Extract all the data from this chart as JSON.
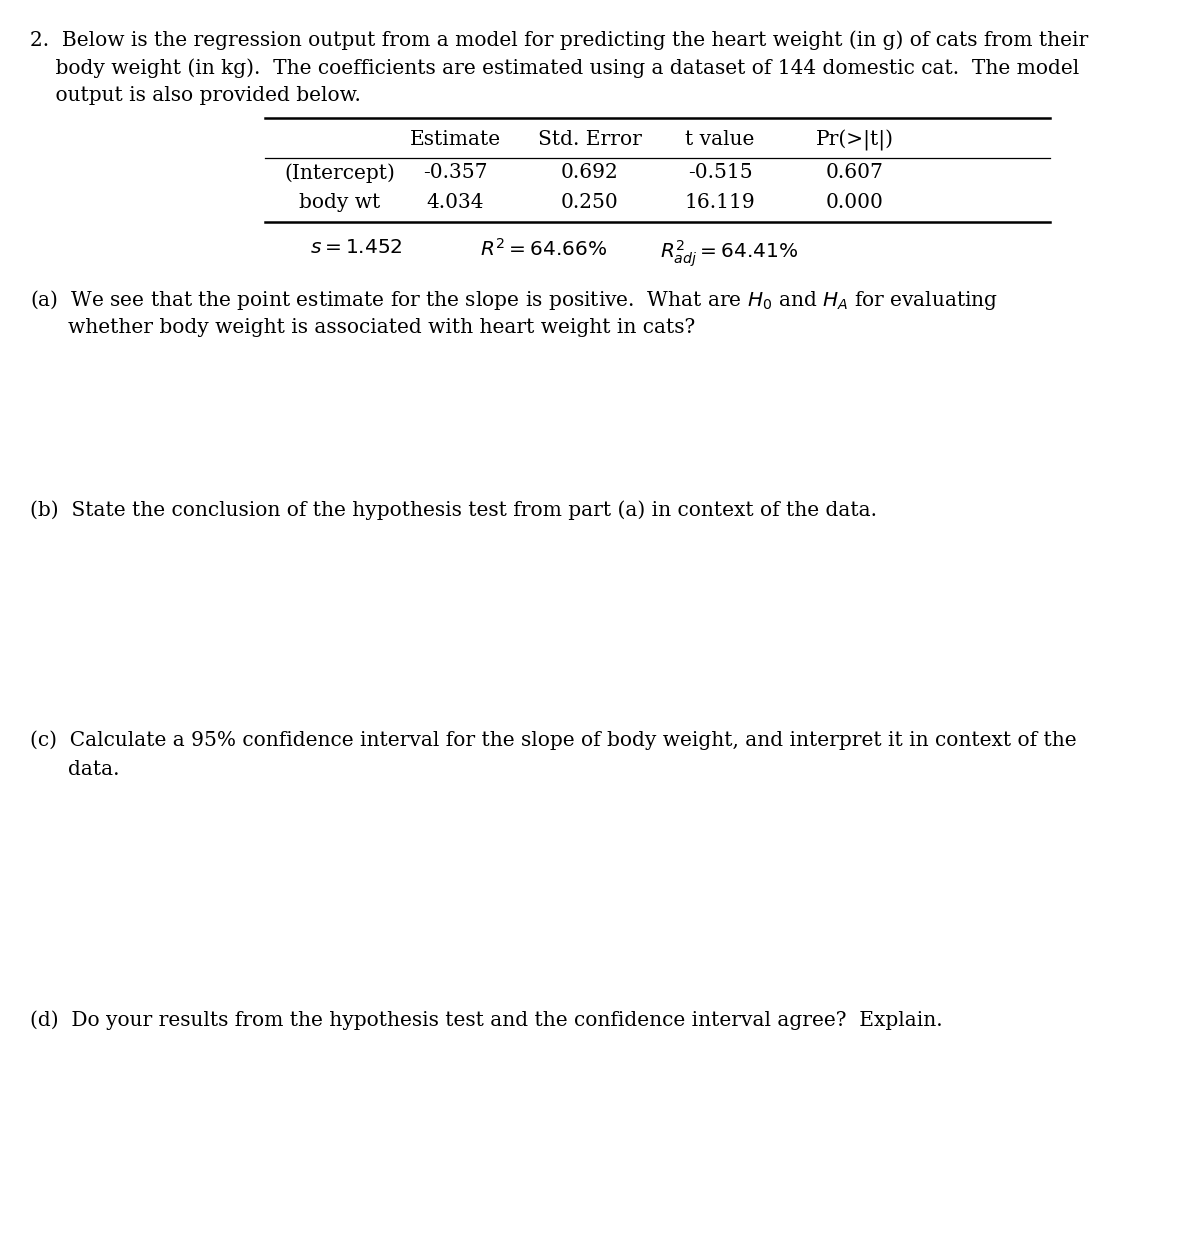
{
  "bg_color": "#ffffff",
  "text_color": "#000000",
  "font_family": "serif",
  "fig_width": 12.0,
  "fig_height": 12.4,
  "dpi": 100,
  "question_line1": "2.  Below is the regression output from a model for predicting the heart weight (in g) of cats from their",
  "question_line2": "    body weight (in kg).  The coefficients are estimated using a dataset of 144 domestic cat.  The model",
  "question_line3": "    output is also provided below.",
  "col_headers": [
    "",
    "Estimate",
    "Std. Error",
    "t value",
    "Pr(>|t|)"
  ],
  "row1": [
    "(Intercept)",
    "-0.357",
    "0.692",
    "-0.515",
    "0.607"
  ],
  "row2": [
    "body wt",
    "4.034",
    "0.250",
    "16.119",
    "0.000"
  ],
  "stats_s": "s = 1.452",
  "stats_r2": "R^2 = 64.66%",
  "stats_radj": "R^2_adj = 64.41%",
  "part_a_line1": "(a)  We see that the point estimate for the slope is positive.  What are $H_0$ and $H_A$ for evaluating",
  "part_a_line2": "      whether body weight is associated with heart weight in cats?",
  "part_b": "(b)  State the conclusion of the hypothesis test from part (a) in context of the data.",
  "part_c_line1": "(c)  Calculate a 95% confidence interval for the slope of body weight, and interpret it in context of the",
  "part_c_line2": "      data.",
  "part_d": "(d)  Do your results from the hypothesis test and the confidence interval agree?  Explain."
}
